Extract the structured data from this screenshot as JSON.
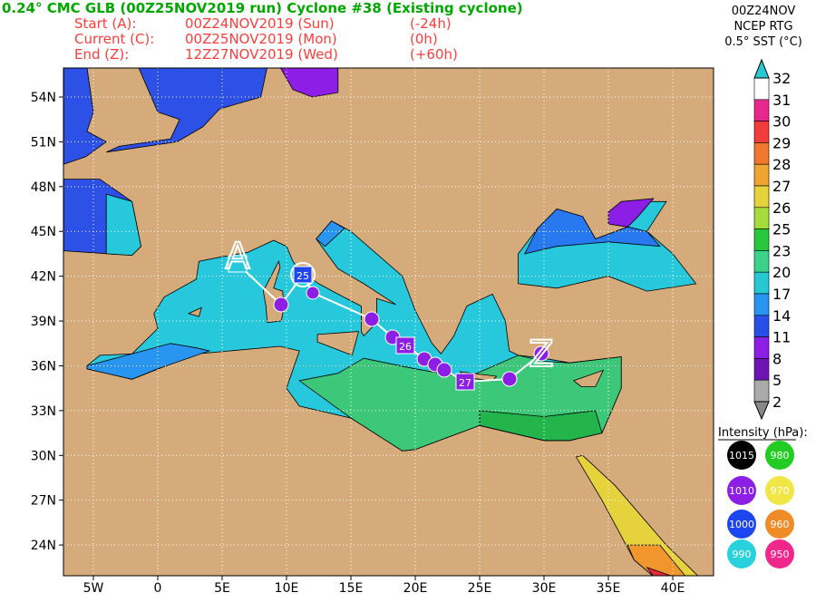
{
  "header": {
    "title": "0.24° CMC GLB (00Z25NOV2019 run) Cyclone #38 (Existing cyclone)",
    "lines": [
      [
        "Start (A):",
        "00Z24NOV2019 (Sun)",
        "(-24h)"
      ],
      [
        "Current (C):",
        "00Z25NOV2019 (Mon)",
        "(0h)"
      ],
      [
        "End (Z):",
        "12Z27NOV2019 (Wed)",
        "(+60h)"
      ]
    ]
  },
  "colorbar": {
    "title_lines": [
      "00Z24NOV",
      "NCEP RTG",
      "0.5° SST (°C)"
    ],
    "labels": [
      "32",
      "31",
      "30",
      "29",
      "28",
      "27",
      "26",
      "25",
      "23",
      "20",
      "17",
      "14",
      "11",
      "8",
      "5",
      "2"
    ]
  },
  "intensity": {
    "title": "Intensity (hPa):",
    "items": [
      "1015",
      "980",
      "1010",
      "970",
      "1000",
      "960",
      "990",
      "950"
    ]
  },
  "map": {
    "lat_labels": [
      "54N",
      "51N",
      "48N",
      "45N",
      "42N",
      "39N",
      "36N",
      "33N",
      "30N",
      "27N",
      "24N"
    ],
    "lon_labels": [
      "5W",
      "0",
      "5E",
      "10E",
      "15E",
      "20E",
      "25E",
      "30E",
      "35E",
      "40E"
    ],
    "track_labels": [
      "A",
      "25",
      "26",
      "27",
      "Z"
    ]
  }
}
